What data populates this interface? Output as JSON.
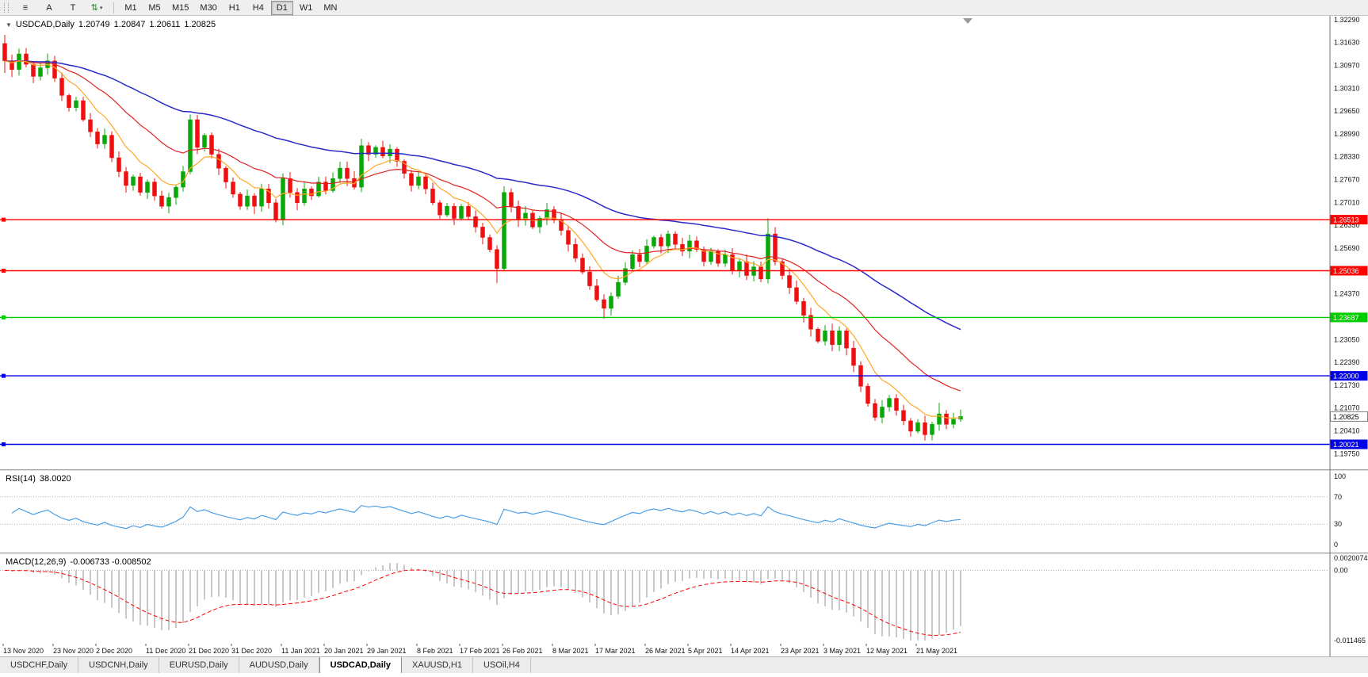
{
  "toolbar": {
    "buttons": [
      {
        "name": "charts-menu-button",
        "icon": "menu-lines-icon",
        "glyph": "≡"
      },
      {
        "name": "a-tool-button",
        "label": "A"
      },
      {
        "name": "t-tool-button",
        "label": "T"
      },
      {
        "name": "arrows-dropdown-button",
        "icon": "sort-arrows-icon",
        "glyph": "⇅",
        "caret": "▾"
      }
    ],
    "timeframes": [
      "M1",
      "M5",
      "M15",
      "M30",
      "H1",
      "H4",
      "D1",
      "W1",
      "MN"
    ],
    "active_timeframe": "D1"
  },
  "chart_data": {
    "type": "candlestick",
    "symbol": "USDCAD",
    "timeframe": "Daily",
    "title": {
      "icon": "▼",
      "symbol": "USDCAD,Daily",
      "o": "1.20749",
      "h": "1.20847",
      "l": "1.20611",
      "c": "1.20825"
    },
    "up_color": "#08A808",
    "down_color": "#EE1010",
    "y_axis": {
      "scale_top": 1.324,
      "scale_bottom": 1.193,
      "labels": [
        "1.32290",
        "1.31630",
        "1.30970",
        "1.30310",
        "1.29650",
        "1.28990",
        "1.28330",
        "1.27670",
        "1.27010",
        "1.26350",
        "1.25690",
        "1.25030",
        "1.24370",
        "1.23710",
        "1.23050",
        "1.22390",
        "1.21730",
        "1.21070",
        "1.20410",
        "1.19750"
      ]
    },
    "current": {
      "price": 1.20825,
      "label": "1.20825"
    },
    "hlines": [
      {
        "price": 1.26513,
        "label": "1.26513",
        "color": "#FF0000",
        "text": "#FFFFFF"
      },
      {
        "price": 1.25036,
        "label": "1.25036",
        "color": "#FF0000",
        "text": "#FFFFFF"
      },
      {
        "price": 1.23687,
        "label": "1.23687",
        "color": "#00CC00",
        "text": "#FFFFFF"
      },
      {
        "price": 1.22,
        "label": "1.22000",
        "color": "#0000E8",
        "text": "#FFFFFF"
      },
      {
        "price": 1.20021,
        "label": "1.20021",
        "color": "#0000E8",
        "text": "#FFFFFF"
      }
    ],
    "mas": [
      {
        "period": 55,
        "color": "#2A2AC8",
        "width": 1.5
      },
      {
        "period": 21,
        "color": "#E02020",
        "width": 1.2
      },
      {
        "period": 8,
        "color": "#FFA726",
        "width": 1.2
      }
    ],
    "first_open": 1.316,
    "closes": [
      1.311,
      1.3085,
      1.313,
      1.31,
      1.3065,
      1.309,
      1.311,
      1.306,
      1.301,
      1.2975,
      1.2995,
      1.294,
      1.2905,
      1.287,
      1.2895,
      1.283,
      1.279,
      1.275,
      1.2775,
      1.273,
      1.276,
      1.272,
      1.269,
      1.2715,
      1.2745,
      1.279,
      1.294,
      1.286,
      1.2895,
      1.284,
      1.28,
      1.276,
      1.2725,
      1.269,
      1.272,
      1.269,
      1.274,
      1.27,
      1.265,
      1.277,
      1.273,
      1.27,
      1.274,
      1.272,
      1.276,
      1.2735,
      1.277,
      1.28,
      1.277,
      1.2745,
      1.2865,
      1.284,
      1.286,
      1.2835,
      1.2855,
      1.282,
      1.2785,
      1.275,
      1.2775,
      1.274,
      1.27,
      1.2665,
      1.269,
      1.2655,
      1.269,
      1.266,
      1.263,
      1.26,
      1.2565,
      1.251,
      1.273,
      1.269,
      1.265,
      1.267,
      1.263,
      1.2655,
      1.268,
      1.265,
      1.262,
      1.258,
      1.254,
      1.25,
      1.246,
      1.242,
      1.2395,
      1.243,
      1.247,
      1.251,
      1.255,
      1.253,
      1.2575,
      1.26,
      1.2575,
      1.261,
      1.258,
      1.256,
      1.259,
      1.2565,
      1.253,
      1.256,
      1.2525,
      1.255,
      1.2505,
      1.253,
      1.249,
      1.2515,
      1.248,
      1.261,
      1.253,
      1.249,
      1.2455,
      1.2415,
      1.2375,
      1.2335,
      1.23,
      1.233,
      1.229,
      1.233,
      1.228,
      1.223,
      1.217,
      1.212,
      1.208,
      1.211,
      1.2135,
      1.21,
      1.207,
      1.204,
      1.2065,
      1.203,
      1.206,
      1.209,
      1.206,
      1.2075,
      1.20825
    ],
    "wick_overrides": {
      "0": {
        "h": 1.3185,
        "l": 1.3075
      },
      "26": {
        "h": 1.2955
      },
      "39": {
        "h": 1.2785,
        "l": 1.2635
      },
      "50": {
        "h": 1.2885
      },
      "69": {
        "l": 1.2468
      },
      "70": {
        "h": 1.2748,
        "l": 1.2505
      },
      "84": {
        "l": 1.2365
      },
      "107": {
        "h": 1.2655
      },
      "129": {
        "l": 1.2013
      },
      "131": {
        "h": 1.2122
      }
    },
    "x_labels": [
      "13 Nov 2020",
      "23 Nov 2020",
      "2 Dec 2020",
      "11 Dec 2020",
      "21 Dec 2020",
      "31 Dec 2020",
      "11 Jan 2021",
      "20 Jan 2021",
      "29 Jan 2021",
      "8 Feb 2021",
      "17 Feb 2021",
      "26 Feb 2021",
      "8 Mar 2021",
      "17 Mar 2021",
      "26 Mar 2021",
      "5 Apr 2021",
      "14 Apr 2021",
      "23 Apr 2021",
      "3 May 2021",
      "12 May 2021",
      "21 May 2021"
    ],
    "x_label_indices": [
      0,
      7,
      13,
      20,
      26,
      32,
      39,
      45,
      51,
      58,
      64,
      70,
      77,
      83,
      90,
      96,
      102,
      109,
      115,
      121,
      128
    ],
    "indicators": {
      "rsi": {
        "label": "RSI(14)",
        "value": "38.0020",
        "period": 14,
        "color": "#4D9FE6",
        "levels": [
          70,
          30
        ],
        "axis_labels": [
          {
            "text": "100",
            "v": 100
          },
          {
            "text": "70",
            "v": 70
          },
          {
            "text": "30",
            "v": 30
          },
          {
            "text": "0",
            "v": 0
          }
        ]
      },
      "macd": {
        "label": "MACD(12,26,9)",
        "values": "-0.006733 -0.008502",
        "fast": 12,
        "slow": 26,
        "signal": 9,
        "hist_color": "#909090",
        "signal_color": "#FF0000",
        "scale_top": 0.0020074,
        "scale_bottom": -0.011465,
        "axis_labels": [
          {
            "text": "0.0020074",
            "v": 0.0020074
          },
          {
            "text": "0.00",
            "v": 0
          },
          {
            "text": "-0.011465",
            "v": -0.011465
          }
        ]
      }
    }
  },
  "tabs": {
    "items": [
      "USDCHF,Daily",
      "USDCNH,Daily",
      "EURUSD,Daily",
      "AUDUSD,Daily",
      "USDCAD,Daily",
      "XAUUSD,H1",
      "USOil,H4"
    ],
    "active_index": 4
  }
}
